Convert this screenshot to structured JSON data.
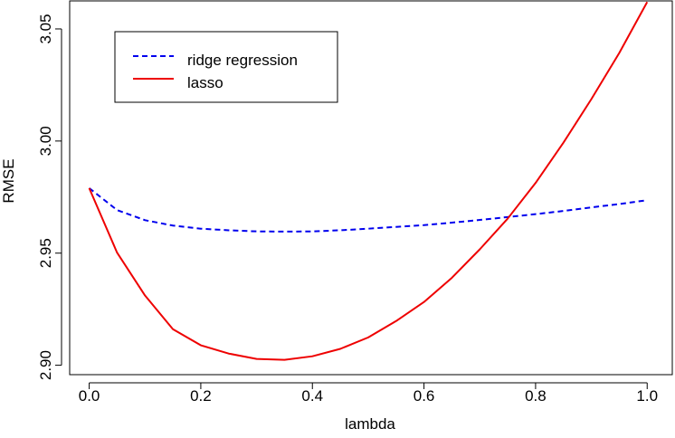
{
  "chart_data": {
    "type": "line",
    "title": "",
    "xlabel": "lambda",
    "ylabel": "RMSE",
    "xlim": [
      -0.035,
      1.045
    ],
    "ylim": [
      2.8958,
      3.0625
    ],
    "xticks": [
      0.0,
      0.2,
      0.4,
      0.6,
      0.8,
      1.0
    ],
    "xtick_labels": [
      "0.0",
      "0.2",
      "0.4",
      "0.6",
      "0.8",
      "1.0"
    ],
    "yticks": [
      2.9,
      2.95,
      3.0,
      3.05
    ],
    "ytick_labels": [
      "2.90",
      "2.95",
      "3.00",
      "3.05"
    ],
    "grid": false,
    "legend_position": "top-left",
    "x": [
      0.0,
      0.05,
      0.1,
      0.15,
      0.2,
      0.25,
      0.3,
      0.35,
      0.4,
      0.45,
      0.5,
      0.55,
      0.6,
      0.65,
      0.7,
      0.75,
      0.8,
      0.85,
      0.9,
      0.95,
      1.0
    ],
    "series": [
      {
        "name": "ridge regression",
        "color": "#0000ee",
        "dash": "dashed",
        "values": [
          2.979,
          2.9692,
          2.9647,
          2.9623,
          2.9609,
          2.9602,
          2.9597,
          2.9596,
          2.9597,
          2.9602,
          2.9609,
          2.9617,
          2.9625,
          2.9636,
          2.9648,
          2.9661,
          2.9674,
          2.9688,
          2.9704,
          2.9719,
          2.9736
        ]
      },
      {
        "name": "lasso",
        "color": "#ee0000",
        "dash": "solid",
        "values": [
          2.979,
          2.9502,
          2.9311,
          2.9161,
          2.9089,
          2.9052,
          2.9028,
          2.9024,
          2.904,
          2.9073,
          2.9124,
          2.9197,
          2.9282,
          2.939,
          2.9517,
          2.9654,
          2.9813,
          2.9993,
          3.0187,
          3.0393,
          3.062
        ]
      }
    ]
  }
}
